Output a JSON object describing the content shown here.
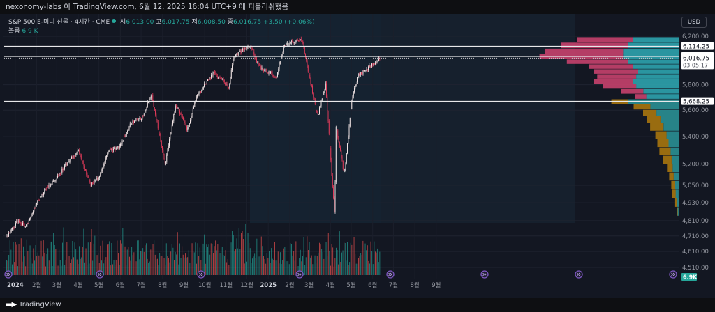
{
  "header": {
    "text": "nexonomy-labs 이 TradingView.com, 6월 12, 2025 16:04 UTC+9 에 퍼블리쉬했음"
  },
  "legend": {
    "symbol": "S&P 500 E-미니 선물 · 4시간 · CME",
    "open_label": "시",
    "open": "6,013.00",
    "high_label": "고",
    "high": "6,017.75",
    "low_label": "저",
    "low": "6,008.50",
    "close_label": "종",
    "close": "6,016.75",
    "change": "+3.50 (+0.06%)",
    "volume_label": "볼륨",
    "volume": "6.9 K"
  },
  "currency_button": "USD",
  "footer": {
    "brand": "TradingView",
    "logo": "tv-logo-icon"
  },
  "colors": {
    "background": "#131722",
    "candle_up": "#f5e8e8",
    "candle_down": "#e23b5a",
    "volume_up": "#26a69a",
    "volume_down": "#ef5350",
    "profile_up": "#2ea3ae",
    "profile_down": "#c7416d",
    "profile_outside": "#a8760e",
    "profile_outside_up": "#2a8f93",
    "accent_circle": "#7e57c2"
  },
  "chart_data": {
    "type": "candlestick",
    "timeframe": "4시간",
    "x_ticks": [
      "2024",
      "2월",
      "3월",
      "4월",
      "5월",
      "6월",
      "7월",
      "8월",
      "9월",
      "10월",
      "11월",
      "12월",
      "2025",
      "2월",
      "3월",
      "4월",
      "5월",
      "6월",
      "7월",
      "8월",
      "9월"
    ],
    "y_ticks": [
      "6,200.00",
      "5,800.00",
      "5,600.00",
      "5,400.00",
      "5,200.00",
      "5,050.00",
      "4,930.00",
      "4,810.00",
      "4,710.00",
      "4,610.00",
      "4,510.00"
    ],
    "ylim": [
      4450,
      6260
    ],
    "y_scale": "log",
    "horizontal_levels": [
      {
        "value": 6114.25,
        "label": "6,114.25"
      },
      {
        "value": 6030.75,
        "label": "6,030.75"
      },
      {
        "value": 5668.25,
        "label": "5,668.25"
      }
    ],
    "last_price": {
      "value": 6016.75,
      "label": "6,016.75",
      "countdown": "03:05:17"
    },
    "volume_badge": "6.9K",
    "price_path": [
      {
        "date": "2023-12-20",
        "price": 4710
      },
      {
        "date": "2024-01-05",
        "price": 4810
      },
      {
        "date": "2024-01-16",
        "price": 4770
      },
      {
        "date": "2024-02-01",
        "price": 4930
      },
      {
        "date": "2024-02-15",
        "price": 5030
      },
      {
        "date": "2024-03-01",
        "price": 5100
      },
      {
        "date": "2024-03-15",
        "price": 5200
      },
      {
        "date": "2024-04-01",
        "price": 5300
      },
      {
        "date": "2024-04-19",
        "price": 5050
      },
      {
        "date": "2024-05-01",
        "price": 5100
      },
      {
        "date": "2024-05-15",
        "price": 5300
      },
      {
        "date": "2024-06-01",
        "price": 5330
      },
      {
        "date": "2024-06-15",
        "price": 5500
      },
      {
        "date": "2024-07-01",
        "price": 5530
      },
      {
        "date": "2024-07-16",
        "price": 5720
      },
      {
        "date": "2024-08-05",
        "price": 5200
      },
      {
        "date": "2024-08-20",
        "price": 5650
      },
      {
        "date": "2024-09-06",
        "price": 5450
      },
      {
        "date": "2024-09-20",
        "price": 5720
      },
      {
        "date": "2024-10-15",
        "price": 5900
      },
      {
        "date": "2024-11-05",
        "price": 5780
      },
      {
        "date": "2024-11-12",
        "price": 6030
      },
      {
        "date": "2024-12-06",
        "price": 6120
      },
      {
        "date": "2024-12-18",
        "price": 5950
      },
      {
        "date": "2025-01-13",
        "price": 5860
      },
      {
        "date": "2025-01-24",
        "price": 6130
      },
      {
        "date": "2025-02-19",
        "price": 6170
      },
      {
        "date": "2025-03-13",
        "price": 5550
      },
      {
        "date": "2025-03-25",
        "price": 5800
      },
      {
        "date": "2025-04-07",
        "price": 4830
      },
      {
        "date": "2025-04-09",
        "price": 5480
      },
      {
        "date": "2025-04-21",
        "price": 5120
      },
      {
        "date": "2025-05-02",
        "price": 5700
      },
      {
        "date": "2025-05-12",
        "price": 5880
      },
      {
        "date": "2025-06-12",
        "price": 6017
      }
    ],
    "volume_profile": {
      "range": [
        4800,
        6200
      ],
      "levels": [
        {
          "price": 6170,
          "up": 0.45,
          "down": 0.5,
          "in_range": true
        },
        {
          "price": 6120,
          "up": 0.5,
          "down": 0.6,
          "in_range": true
        },
        {
          "price": 6070,
          "up": 0.55,
          "down": 0.7,
          "in_range": true
        },
        {
          "price": 6025,
          "up": 0.55,
          "down": 0.75,
          "in_range": true
        },
        {
          "price": 5985,
          "up": 0.5,
          "down": 0.55,
          "in_range": true
        },
        {
          "price": 5945,
          "up": 0.45,
          "down": 0.4,
          "in_range": true
        },
        {
          "price": 5905,
          "up": 0.4,
          "down": 0.4,
          "in_range": true
        },
        {
          "price": 5865,
          "up": 0.42,
          "down": 0.35,
          "in_range": true
        },
        {
          "price": 5825,
          "up": 0.45,
          "down": 0.35,
          "in_range": true
        },
        {
          "price": 5785,
          "up": 0.42,
          "down": 0.3,
          "in_range": true
        },
        {
          "price": 5745,
          "up": 0.35,
          "down": 0.2,
          "in_range": true
        },
        {
          "price": 5705,
          "up": 0.32,
          "down": 0.1,
          "in_range": true
        },
        {
          "price": 5665,
          "up": 0.5,
          "down": 0.15,
          "in_range": false
        },
        {
          "price": 5625,
          "up": 0.28,
          "down": 0.15,
          "in_range": false
        },
        {
          "price": 5580,
          "up": 0.22,
          "down": 0.12,
          "in_range": false
        },
        {
          "price": 5530,
          "up": 0.18,
          "down": 0.12,
          "in_range": false
        },
        {
          "price": 5470,
          "up": 0.15,
          "down": 0.12,
          "in_range": false
        },
        {
          "price": 5410,
          "up": 0.12,
          "down": 0.1,
          "in_range": false
        },
        {
          "price": 5350,
          "up": 0.1,
          "down": 0.1,
          "in_range": false
        },
        {
          "price": 5290,
          "up": 0.08,
          "down": 0.1,
          "in_range": false
        },
        {
          "price": 5230,
          "up": 0.07,
          "down": 0.08,
          "in_range": false
        },
        {
          "price": 5170,
          "up": 0.06,
          "down": 0.05,
          "in_range": false
        },
        {
          "price": 5110,
          "up": 0.05,
          "down": 0.04,
          "in_range": false
        },
        {
          "price": 5050,
          "up": 0.04,
          "down": 0.03,
          "in_range": false
        },
        {
          "price": 4990,
          "up": 0.03,
          "down": 0.03,
          "in_range": false
        },
        {
          "price": 4930,
          "up": 0.02,
          "down": 0.02,
          "in_range": false
        },
        {
          "price": 4870,
          "up": 0.01,
          "down": 0.01,
          "in_range": false
        }
      ]
    }
  }
}
